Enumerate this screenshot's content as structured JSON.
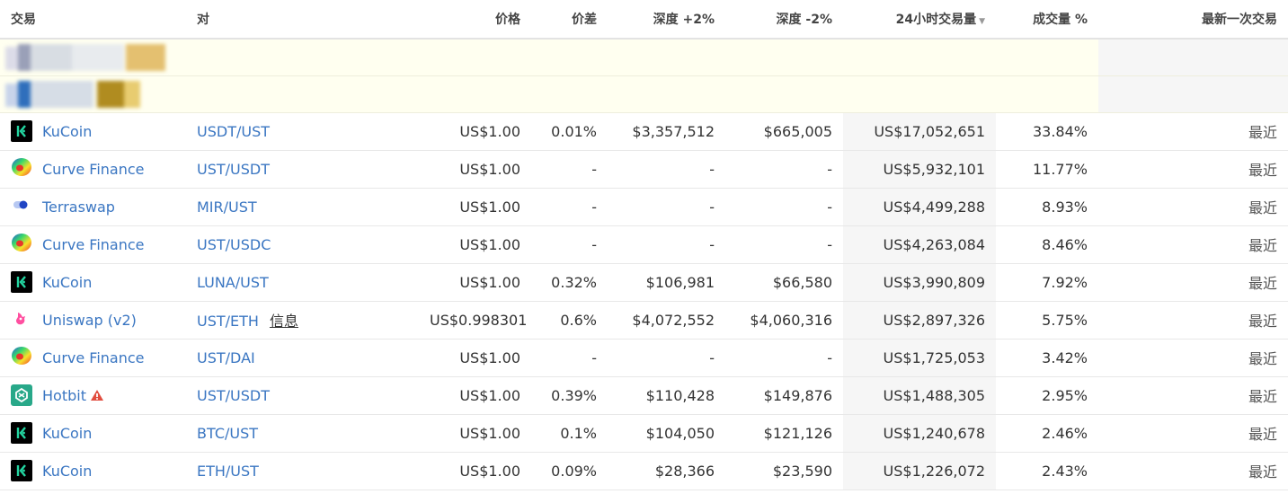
{
  "headers": {
    "exchange": "交易",
    "pair": "对",
    "price": "价格",
    "spread": "价差",
    "depth_plus": "深度 +2%",
    "depth_minus": "深度 -2%",
    "volume": "24小时交易量",
    "volume_pct": "成交量 %",
    "last_traded": "最新一次交易"
  },
  "rows": [
    {
      "exchange": "KuCoin",
      "icon": "kucoin-logo",
      "pair": "USDT/UST",
      "info": "",
      "price": "US$1.00",
      "spread": "0.01%",
      "depth_plus": "$3,357,512",
      "depth_minus": "$665,005",
      "volume": "US$17,052,651",
      "volume_pct": "33.84%",
      "last": "最近",
      "warning": false
    },
    {
      "exchange": "Curve Finance",
      "icon": "curve-logo",
      "pair": "UST/USDT",
      "info": "",
      "price": "US$1.00",
      "spread": "-",
      "depth_plus": "-",
      "depth_minus": "-",
      "volume": "US$5,932,101",
      "volume_pct": "11.77%",
      "last": "最近",
      "warning": false
    },
    {
      "exchange": "Terraswap",
      "icon": "terraswap-logo",
      "pair": "MIR/UST",
      "info": "",
      "price": "US$1.00",
      "spread": "-",
      "depth_plus": "-",
      "depth_minus": "-",
      "volume": "US$4,499,288",
      "volume_pct": "8.93%",
      "last": "最近",
      "warning": false
    },
    {
      "exchange": "Curve Finance",
      "icon": "curve-logo",
      "pair": "UST/USDC",
      "info": "",
      "price": "US$1.00",
      "spread": "-",
      "depth_plus": "-",
      "depth_minus": "-",
      "volume": "US$4,263,084",
      "volume_pct": "8.46%",
      "last": "最近",
      "warning": false
    },
    {
      "exchange": "KuCoin",
      "icon": "kucoin-logo",
      "pair": "LUNA/UST",
      "info": "",
      "price": "US$1.00",
      "spread": "0.32%",
      "depth_plus": "$106,981",
      "depth_minus": "$66,580",
      "volume": "US$3,990,809",
      "volume_pct": "7.92%",
      "last": "最近",
      "warning": false
    },
    {
      "exchange": "Uniswap (v2)",
      "icon": "uniswap-logo",
      "pair": "UST/ETH",
      "info": "信息",
      "price": "US$0.998301",
      "spread": "0.6%",
      "depth_plus": "$4,072,552",
      "depth_minus": "$4,060,316",
      "volume": "US$2,897,326",
      "volume_pct": "5.75%",
      "last": "最近",
      "warning": false
    },
    {
      "exchange": "Curve Finance",
      "icon": "curve-logo",
      "pair": "UST/DAI",
      "info": "",
      "price": "US$1.00",
      "spread": "-",
      "depth_plus": "-",
      "depth_minus": "-",
      "volume": "US$1,725,053",
      "volume_pct": "3.42%",
      "last": "最近",
      "warning": false
    },
    {
      "exchange": "Hotbit",
      "icon": "hotbit-logo",
      "pair": "UST/USDT",
      "info": "",
      "price": "US$1.00",
      "spread": "0.39%",
      "depth_plus": "$110,428",
      "depth_minus": "$149,876",
      "volume": "US$1,488,305",
      "volume_pct": "2.95%",
      "last": "最近",
      "warning": true
    },
    {
      "exchange": "KuCoin",
      "icon": "kucoin-logo",
      "pair": "BTC/UST",
      "info": "",
      "price": "US$1.00",
      "spread": "0.1%",
      "depth_plus": "$104,050",
      "depth_minus": "$121,126",
      "volume": "US$1,240,678",
      "volume_pct": "2.46%",
      "last": "最近",
      "warning": false
    },
    {
      "exchange": "KuCoin",
      "icon": "kucoin-logo",
      "pair": "ETH/UST",
      "info": "",
      "price": "US$1.00",
      "spread": "0.09%",
      "depth_plus": "$28,366",
      "depth_minus": "$23,590",
      "volume": "US$1,226,072",
      "volume_pct": "2.43%",
      "last": "最近",
      "warning": false
    }
  ],
  "colors": {
    "link": "#3a76c2",
    "sponsored_bg": "#fffff0",
    "volume_col_bg": "#f6f6f6",
    "kucoin": "#000000",
    "hotbit": "#28a889",
    "warning": "#e14d3f"
  }
}
